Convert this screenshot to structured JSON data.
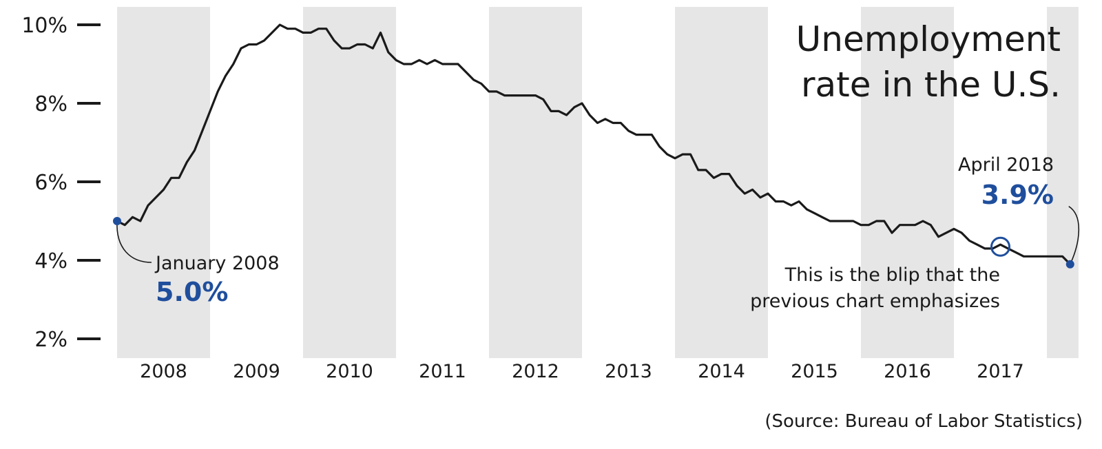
{
  "colors": {
    "line": "#1a1a1a",
    "band": "#e6e6e6",
    "accent": "#1f4e9c"
  },
  "title_lines": [
    "Unemployment",
    "rate in the U.S."
  ],
  "source": "(Source: Bureau of Labor Statistics)",
  "chart_data": {
    "type": "line",
    "title": "Unemployment rate in the U.S.",
    "xlabel": "",
    "ylabel": "",
    "x_range": [
      2008.0,
      2018.34
    ],
    "ylim": [
      1.5,
      10.5
    ],
    "y_ticks": [
      2,
      4,
      6,
      8,
      10
    ],
    "y_tick_labels": [
      "2%",
      "4%",
      "6%",
      "8%",
      "10%"
    ],
    "x_tick_labels": [
      "2008",
      "2009",
      "2010",
      "2011",
      "2012",
      "2013",
      "2014",
      "2015",
      "2016",
      "2017"
    ],
    "shaded_years": [
      "2008",
      "2010",
      "2012",
      "2014",
      "2016",
      "2018"
    ],
    "grid": false,
    "series": [
      {
        "x": [
          2008.0,
          2008.083,
          2008.167,
          2008.25,
          2008.333,
          2008.417,
          2008.5,
          2008.583,
          2008.667,
          2008.75,
          2008.833,
          2008.917,
          2009.0,
          2009.083,
          2009.167,
          2009.25,
          2009.333,
          2009.417,
          2009.5,
          2009.583,
          2009.667,
          2009.75,
          2009.833,
          2009.917,
          2010.0,
          2010.083,
          2010.167,
          2010.25,
          2010.333,
          2010.417,
          2010.5,
          2010.583,
          2010.667,
          2010.75,
          2010.833,
          2010.917,
          2011.0,
          2011.083,
          2011.167,
          2011.25,
          2011.333,
          2011.417,
          2011.5,
          2011.583,
          2011.667,
          2011.75,
          2011.833,
          2011.917,
          2012.0,
          2012.083,
          2012.167,
          2012.25,
          2012.333,
          2012.417,
          2012.5,
          2012.583,
          2012.667,
          2012.75,
          2012.833,
          2012.917,
          2013.0,
          2013.083,
          2013.167,
          2013.25,
          2013.333,
          2013.417,
          2013.5,
          2013.583,
          2013.667,
          2013.75,
          2013.833,
          2013.917,
          2014.0,
          2014.083,
          2014.167,
          2014.25,
          2014.333,
          2014.417,
          2014.5,
          2014.583,
          2014.667,
          2014.75,
          2014.833,
          2014.917,
          2015.0,
          2015.083,
          2015.167,
          2015.25,
          2015.333,
          2015.417,
          2015.5,
          2015.583,
          2015.667,
          2015.75,
          2015.833,
          2015.917,
          2016.0,
          2016.083,
          2016.167,
          2016.25,
          2016.333,
          2016.417,
          2016.5,
          2016.583,
          2016.667,
          2016.75,
          2016.833,
          2016.917,
          2017.0,
          2017.083,
          2017.167,
          2017.25,
          2017.333,
          2017.417,
          2017.5,
          2017.583,
          2017.667,
          2017.75,
          2017.833,
          2017.917,
          2018.0,
          2018.083,
          2018.167,
          2018.25
        ],
        "values": [
          5.0,
          4.9,
          5.1,
          5.0,
          5.4,
          5.6,
          5.8,
          6.1,
          6.1,
          6.5,
          6.8,
          7.3,
          7.8,
          8.3,
          8.7,
          9.0,
          9.4,
          9.5,
          9.5,
          9.6,
          9.8,
          10.0,
          9.9,
          9.9,
          9.8,
          9.8,
          9.9,
          9.9,
          9.6,
          9.4,
          9.4,
          9.5,
          9.5,
          9.4,
          9.8,
          9.3,
          9.1,
          9.0,
          9.0,
          9.1,
          9.0,
          9.1,
          9.0,
          9.0,
          9.0,
          8.8,
          8.6,
          8.5,
          8.3,
          8.3,
          8.2,
          8.2,
          8.2,
          8.2,
          8.2,
          8.1,
          7.8,
          7.8,
          7.7,
          7.9,
          8.0,
          7.7,
          7.5,
          7.6,
          7.5,
          7.5,
          7.3,
          7.2,
          7.2,
          7.2,
          6.9,
          6.7,
          6.6,
          6.7,
          6.7,
          6.3,
          6.3,
          6.1,
          6.2,
          6.2,
          5.9,
          5.7,
          5.8,
          5.6,
          5.7,
          5.5,
          5.5,
          5.4,
          5.5,
          5.3,
          5.2,
          5.1,
          5.0,
          5.0,
          5.0,
          5.0,
          4.9,
          4.9,
          5.0,
          5.0,
          4.7,
          4.9,
          4.9,
          4.9,
          5.0,
          4.9,
          4.6,
          4.7,
          4.8,
          4.7,
          4.5,
          4.4,
          4.3,
          4.3,
          4.4,
          4.3,
          4.2,
          4.1,
          4.1,
          4.1,
          4.1,
          4.1,
          4.1,
          3.9
        ]
      }
    ],
    "annotations": {
      "start": {
        "label": "January 2008",
        "value_text": "5.0%",
        "x": 2008.0,
        "y": 5.0
      },
      "end": {
        "label": "April 2018",
        "value_text": "3.9%",
        "x": 2018.25,
        "y": 3.9
      },
      "blip": {
        "lines": [
          "This is the blip that the",
          "previous chart emphasizes"
        ],
        "x": 2017.5,
        "y": 4.4
      }
    }
  }
}
